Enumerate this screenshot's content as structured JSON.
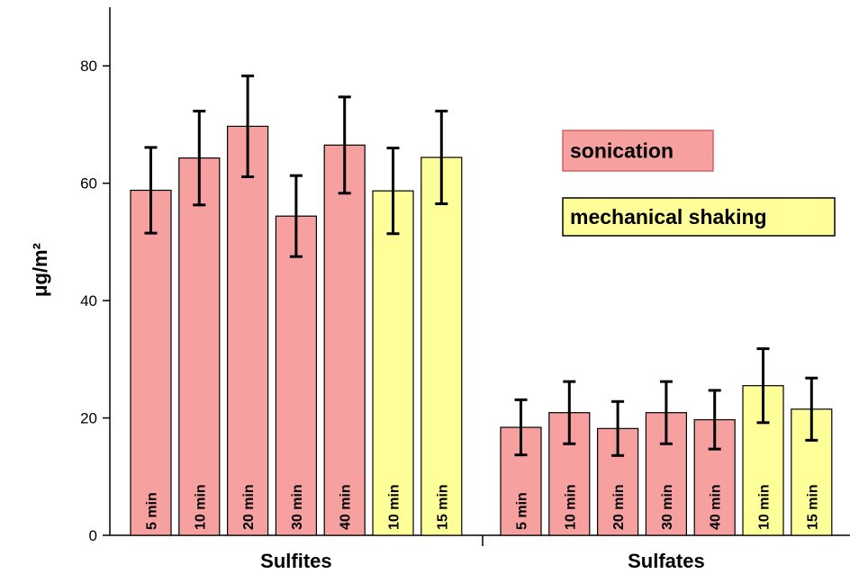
{
  "chart_data": {
    "type": "bar",
    "ylabel": "μg/m²",
    "ylim": [
      0,
      90
    ],
    "yticks": [
      0,
      20,
      40,
      60,
      80
    ],
    "series": [
      {
        "name": "sonication",
        "color": "#f6a0a0"
      },
      {
        "name": "mechanical shaking",
        "color": "#ffff99"
      }
    ],
    "groups": [
      {
        "name": "Sulfites",
        "bars": [
          {
            "label": "5 min",
            "series": 0,
            "value": 58.8,
            "error": 7.3
          },
          {
            "label": "10 min",
            "series": 0,
            "value": 64.3,
            "error": 8.0
          },
          {
            "label": "20 min",
            "series": 0,
            "value": 69.7,
            "error": 8.6
          },
          {
            "label": "30 min",
            "series": 0,
            "value": 54.4,
            "error": 6.9
          },
          {
            "label": "40 min",
            "series": 0,
            "value": 66.5,
            "error": 8.2
          },
          {
            "label": "10 min",
            "series": 1,
            "value": 58.7,
            "error": 7.3
          },
          {
            "label": "15 min",
            "series": 1,
            "value": 64.4,
            "error": 7.9
          }
        ]
      },
      {
        "name": "Sulfates",
        "bars": [
          {
            "label": "5 min",
            "series": 0,
            "value": 18.4,
            "error": 4.7
          },
          {
            "label": "10 min",
            "series": 0,
            "value": 20.9,
            "error": 5.3
          },
          {
            "label": "20 min",
            "series": 0,
            "value": 18.2,
            "error": 4.6
          },
          {
            "label": "30 min",
            "series": 0,
            "value": 20.9,
            "error": 5.3
          },
          {
            "label": "40 min",
            "series": 0,
            "value": 19.7,
            "error": 5.0
          },
          {
            "label": "10 min",
            "series": 1,
            "value": 25.5,
            "error": 6.3
          },
          {
            "label": "15 min",
            "series": 1,
            "value": 21.5,
            "error": 5.3
          }
        ]
      }
    ]
  }
}
